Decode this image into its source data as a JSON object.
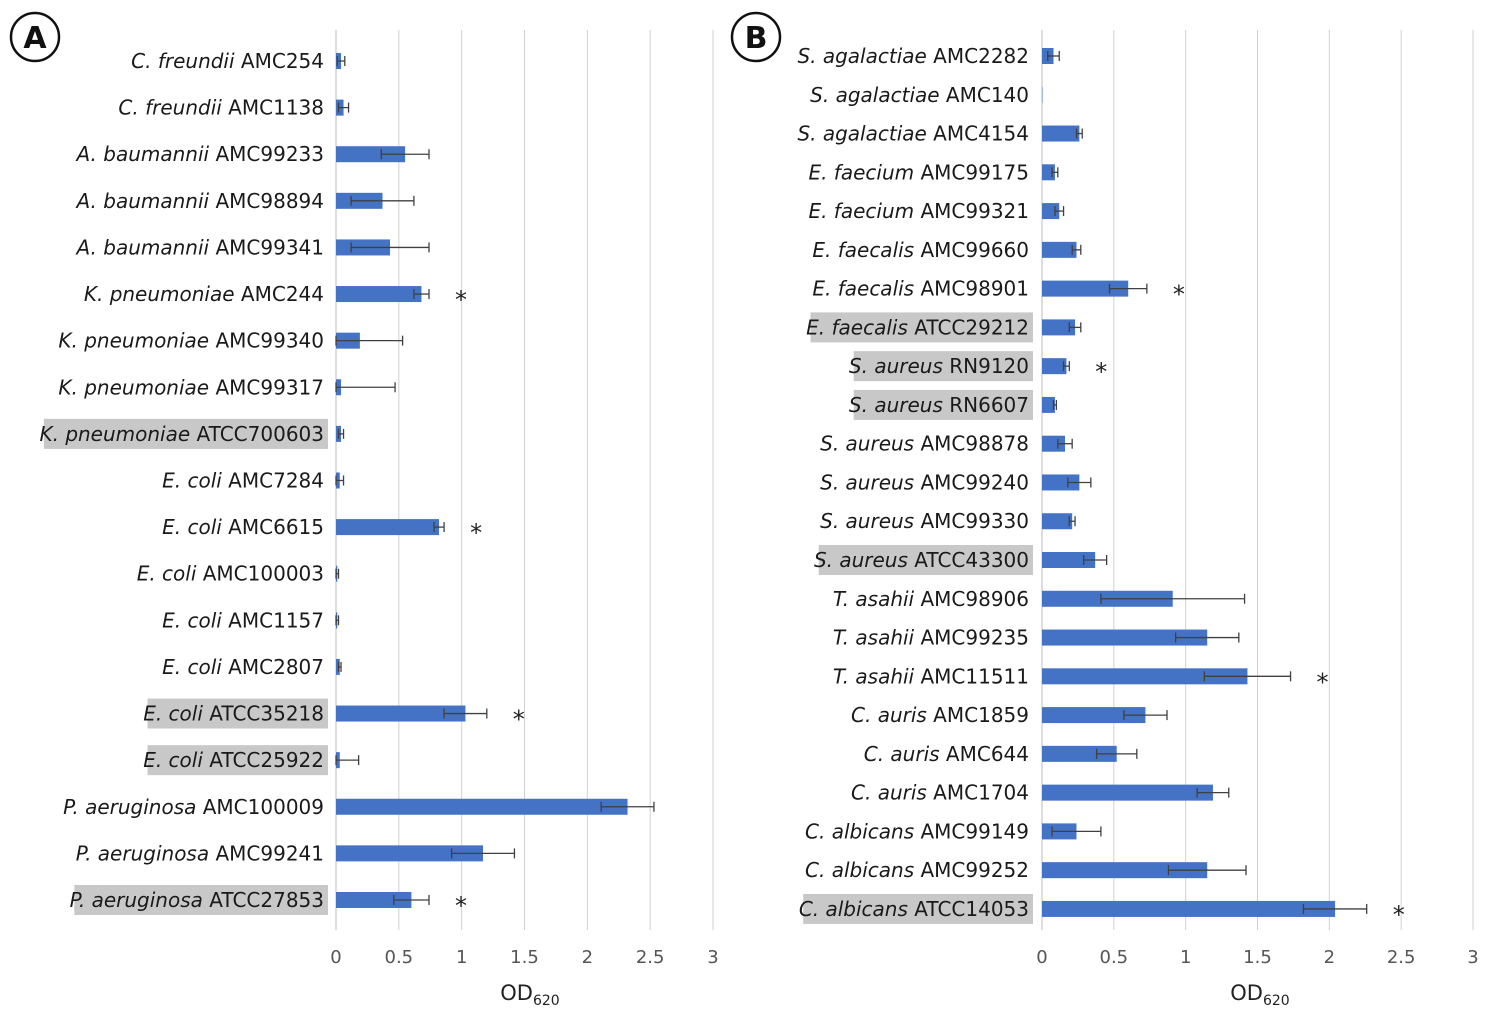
{
  "colors": {
    "bar": "#4472C4",
    "error": "#404040",
    "grid": "#d0d0d0",
    "highlight": "#c8c8c8"
  },
  "chart_data": [
    {
      "panel": "A",
      "type": "bar",
      "orientation": "horizontal",
      "xlabel": "OD",
      "xlabel_sub": "620",
      "xlim": [
        0,
        3
      ],
      "xticks": [
        0,
        0.5,
        1,
        1.5,
        2,
        2.5,
        3
      ],
      "xtick_labels": [
        "0",
        "0.5",
        "1",
        "1.5",
        "2",
        "2.5",
        "3"
      ],
      "grid": "vertical",
      "rows": [
        {
          "species": "C. freundii",
          "strain": "AMC254",
          "value": 0.04,
          "error": 0.03,
          "star": false,
          "highlight": false
        },
        {
          "species": "C. freundii",
          "strain": "AMC1138",
          "value": 0.06,
          "error": 0.04,
          "star": false,
          "highlight": false
        },
        {
          "species": "A. baumannii",
          "strain": "AMC99233",
          "value": 0.55,
          "error": 0.19,
          "star": false,
          "highlight": false
        },
        {
          "species": "A. baumannii",
          "strain": "AMC98894",
          "value": 0.37,
          "error": 0.25,
          "star": false,
          "highlight": false
        },
        {
          "species": "A. baumannii",
          "strain": "AMC99341",
          "value": 0.43,
          "error": 0.31,
          "star": false,
          "highlight": false
        },
        {
          "species": "K. pneumoniae",
          "strain": "AMC244",
          "value": 0.68,
          "error": 0.06,
          "star": true,
          "highlight": false
        },
        {
          "species": "K. pneumoniae",
          "strain": "AMC99340",
          "value": 0.19,
          "error": 0.34,
          "star": false,
          "highlight": false
        },
        {
          "species": "K. pneumoniae",
          "strain": "AMC99317",
          "value": 0.04,
          "error": 0.43,
          "star": false,
          "highlight": false
        },
        {
          "species": "K. pneumoniae",
          "strain": "ATCC700603",
          "value": 0.04,
          "error": 0.02,
          "star": false,
          "highlight": true
        },
        {
          "species": "E. coli",
          "strain": "AMC7284",
          "value": 0.03,
          "error": 0.03,
          "star": false,
          "highlight": false
        },
        {
          "species": "E. coli",
          "strain": "AMC6615",
          "value": 0.82,
          "error": 0.04,
          "star": true,
          "highlight": false
        },
        {
          "species": "E. coli",
          "strain": "AMC100003",
          "value": 0.01,
          "error": 0.01,
          "star": false,
          "highlight": false
        },
        {
          "species": "E. coli",
          "strain": "AMC1157",
          "value": 0.01,
          "error": 0.01,
          "star": false,
          "highlight": false
        },
        {
          "species": "E. coli",
          "strain": "AMC2807",
          "value": 0.03,
          "error": 0.01,
          "star": false,
          "highlight": false
        },
        {
          "species": "E. coli",
          "strain": "ATCC35218",
          "value": 1.03,
          "error": 0.17,
          "star": true,
          "highlight": true
        },
        {
          "species": "E. coli",
          "strain": "ATCC25922",
          "value": 0.03,
          "error": 0.15,
          "star": false,
          "highlight": true
        },
        {
          "species": "P. aeruginosa",
          "strain": "AMC100009",
          "value": 2.32,
          "error": 0.21,
          "star": false,
          "highlight": false
        },
        {
          "species": "P. aeruginosa",
          "strain": "AMC99241",
          "value": 1.17,
          "error": 0.25,
          "star": false,
          "highlight": false
        },
        {
          "species": "P. aeruginosa",
          "strain": "ATCC27853",
          "value": 0.6,
          "error": 0.14,
          "star": true,
          "highlight": true
        }
      ]
    },
    {
      "panel": "B",
      "type": "bar",
      "orientation": "horizontal",
      "xlabel": "OD",
      "xlabel_sub": "620",
      "xlim": [
        0,
        3
      ],
      "xticks": [
        0,
        0.5,
        1,
        1.5,
        2,
        2.5,
        3
      ],
      "xtick_labels": [
        "0",
        "0.5",
        "1",
        "1.5",
        "2",
        "2.5",
        "3"
      ],
      "grid": "vertical",
      "rows": [
        {
          "species": "S. agalactiae",
          "strain": "AMC2282",
          "value": 0.08,
          "error": 0.04,
          "star": false,
          "highlight": false
        },
        {
          "species": "S. agalactiae",
          "strain": "AMC140",
          "value": 0.0,
          "error": 0.0,
          "star": false,
          "highlight": false
        },
        {
          "species": "S. agalactiae",
          "strain": "AMC4154",
          "value": 0.26,
          "error": 0.02,
          "star": false,
          "highlight": false
        },
        {
          "species": "E. faecium",
          "strain": "AMC99175",
          "value": 0.09,
          "error": 0.02,
          "star": false,
          "highlight": false
        },
        {
          "species": "E. faecium",
          "strain": "AMC99321",
          "value": 0.12,
          "error": 0.03,
          "star": false,
          "highlight": false
        },
        {
          "species": "E. faecalis",
          "strain": "AMC99660",
          "value": 0.24,
          "error": 0.03,
          "star": false,
          "highlight": false
        },
        {
          "species": "E. faecalis",
          "strain": "AMC98901",
          "value": 0.6,
          "error": 0.13,
          "star": true,
          "highlight": false
        },
        {
          "species": "E. faecalis",
          "strain": "ATCC29212",
          "value": 0.23,
          "error": 0.04,
          "star": false,
          "highlight": true
        },
        {
          "species": "S. aureus",
          "strain": "RN9120",
          "value": 0.17,
          "error": 0.02,
          "star": true,
          "highlight": true
        },
        {
          "species": "S. aureus",
          "strain": "RN6607",
          "value": 0.09,
          "error": 0.01,
          "star": false,
          "highlight": true
        },
        {
          "species": "S. aureus",
          "strain": "AMC98878",
          "value": 0.16,
          "error": 0.05,
          "star": false,
          "highlight": false
        },
        {
          "species": "S. aureus",
          "strain": "AMC99240",
          "value": 0.26,
          "error": 0.08,
          "star": false,
          "highlight": false
        },
        {
          "species": "S. aureus",
          "strain": "AMC99330",
          "value": 0.21,
          "error": 0.02,
          "star": false,
          "highlight": false
        },
        {
          "species": "S. aureus",
          "strain": "ATCC43300",
          "value": 0.37,
          "error": 0.08,
          "star": false,
          "highlight": true
        },
        {
          "species": "T. asahii",
          "strain": "AMC98906",
          "value": 0.91,
          "error": 0.5,
          "star": false,
          "highlight": false
        },
        {
          "species": "T. asahii",
          "strain": "AMC99235",
          "value": 1.15,
          "error": 0.22,
          "star": false,
          "highlight": false
        },
        {
          "species": "T. asahii",
          "strain": "AMC11511",
          "value": 1.43,
          "error": 0.3,
          "star": true,
          "highlight": false
        },
        {
          "species": "C. auris",
          "strain": "AMC1859",
          "value": 0.72,
          "error": 0.15,
          "star": false,
          "highlight": false
        },
        {
          "species": "C. auris",
          "strain": "AMC644",
          "value": 0.52,
          "error": 0.14,
          "star": false,
          "highlight": false
        },
        {
          "species": "C. auris",
          "strain": "AMC1704",
          "value": 1.19,
          "error": 0.11,
          "star": false,
          "highlight": false
        },
        {
          "species": "C. albicans",
          "strain": "AMC99149",
          "value": 0.24,
          "error": 0.17,
          "star": false,
          "highlight": false
        },
        {
          "species": "C. albicans",
          "strain": "AMC99252",
          "value": 1.15,
          "error": 0.27,
          "star": false,
          "highlight": false
        },
        {
          "species": "C. albicans",
          "strain": "ATCC14053",
          "value": 2.04,
          "error": 0.22,
          "star": true,
          "highlight": true
        }
      ]
    }
  ]
}
